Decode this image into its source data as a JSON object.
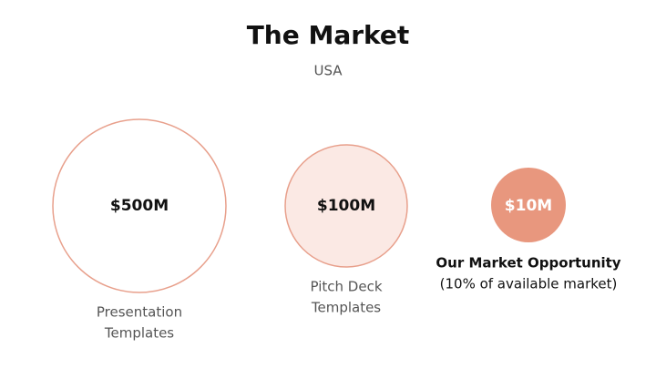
{
  "header": {
    "title": "The Market",
    "subtitle": "USA"
  },
  "circles": [
    {
      "label": "$500M",
      "caption": [
        "Presentation",
        "Templates"
      ]
    },
    {
      "label": "$100M",
      "caption": [
        "Pitch Deck",
        "Templates"
      ]
    },
    {
      "label": "$10M",
      "caption": [
        "Our Market Opportunity",
        "(10% of available market)"
      ]
    }
  ]
}
